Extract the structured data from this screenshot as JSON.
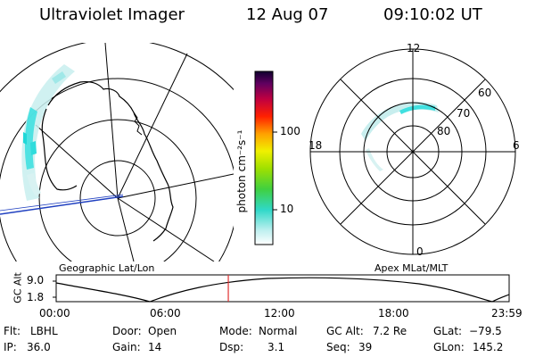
{
  "header": {
    "instrument": "Ultraviolet Imager",
    "date": "12 Aug 07",
    "time": "09:10:02 UT"
  },
  "colorbar": {
    "unit_label": "photon cm⁻²s⁻¹",
    "ticks": [
      "100",
      "10"
    ]
  },
  "polar_plot": {
    "mlt_labels": [
      "12",
      "18",
      "6",
      "0"
    ],
    "lat_labels": [
      "60",
      "70",
      "80"
    ]
  },
  "timeline": {
    "left_label": "Geographic Lat/Lon",
    "right_label": "Apex MLat/MLT",
    "y_axis_label": "GC Alt",
    "y_ticks": [
      "9.0",
      "1.8"
    ],
    "x_ticks": [
      "00:00",
      "06:00",
      "12:00",
      "18:00",
      "23:59"
    ],
    "current_time_fraction": 0.38
  },
  "info": {
    "row1": [
      {
        "key": "Flt:",
        "value": "LBHL"
      },
      {
        "key": "Door:",
        "value": "Open"
      },
      {
        "key": "Mode:",
        "value": "Normal"
      },
      {
        "key": "GC Alt:",
        "value": "7.2 Re"
      },
      {
        "key": "GLat:",
        "value": "−79.5"
      }
    ],
    "row2": [
      {
        "key": "IP:",
        "value": "36.0"
      },
      {
        "key": "Gain:",
        "value": "14"
      },
      {
        "key": "Dsp:",
        "value": "3.1"
      },
      {
        "key": "Seq:",
        "value": "39"
      },
      {
        "key": "GLon:",
        "value": "145.2"
      }
    ]
  },
  "colors": {
    "aurora": "#40e0e0",
    "orbit_marker": "#e03030",
    "meridian": "#2040c0"
  }
}
